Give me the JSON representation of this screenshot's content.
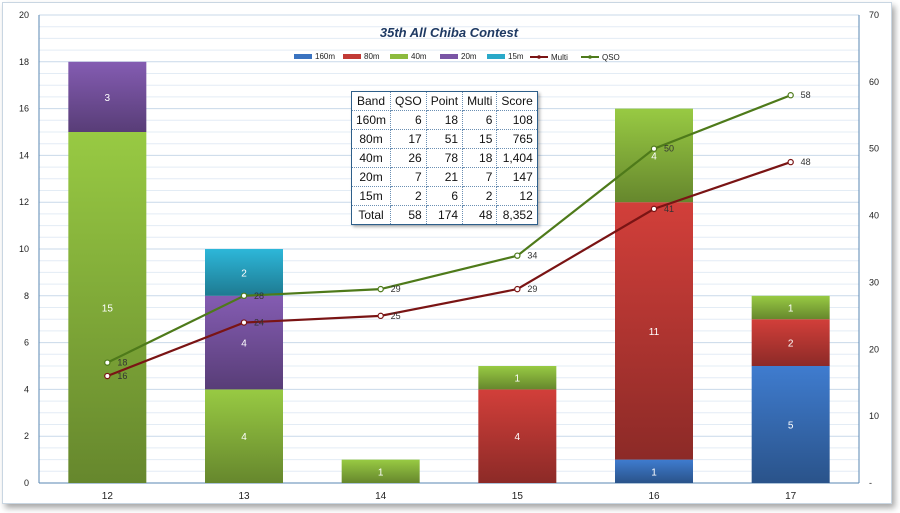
{
  "chart_data": {
    "type": "bar",
    "title": "35th All Chiba Contest",
    "categories": [
      "12",
      "13",
      "14",
      "15",
      "16",
      "17"
    ],
    "stacked": true,
    "series": [
      {
        "name": "160m",
        "color": "#3a73c0",
        "values": [
          0,
          0,
          0,
          0,
          1,
          5
        ]
      },
      {
        "name": "80m",
        "color": "#c23a36",
        "values": [
          0,
          0,
          0,
          4,
          11,
          2
        ]
      },
      {
        "name": "40m",
        "color": "#8dbb3e",
        "values": [
          15,
          4,
          1,
          1,
          4,
          1
        ]
      },
      {
        "name": "20m",
        "color": "#7a55a5",
        "values": [
          3,
          4,
          0,
          0,
          0,
          0
        ]
      },
      {
        "name": "15m",
        "color": "#2aa9c9",
        "values": [
          0,
          2,
          0,
          0,
          0,
          0
        ]
      }
    ],
    "lines": [
      {
        "name": "Multi",
        "color": "#7a1414",
        "axis": "right",
        "values": [
          16,
          24,
          25,
          29,
          41,
          48
        ]
      },
      {
        "name": "QSO",
        "color": "#4e7a1a",
        "axis": "right",
        "values": [
          18,
          28,
          29,
          34,
          50,
          58
        ]
      }
    ],
    "ylim": [
      0,
      20
    ],
    "yticks": [
      0,
      2,
      4,
      6,
      8,
      10,
      12,
      14,
      16,
      18,
      20
    ],
    "y2lim": [
      0,
      70
    ],
    "y2ticks": [
      0,
      10,
      20,
      30,
      40,
      50,
      60,
      70
    ],
    "legend": [
      "160m",
      "80m",
      "40m",
      "20m",
      "15m",
      "Multi",
      "QSO"
    ],
    "legend_position": "top"
  },
  "score_table": {
    "headers": [
      "Band",
      "QSO",
      "Point",
      "Multi",
      "Score"
    ],
    "rows": [
      [
        "160m",
        "6",
        "18",
        "6",
        "108"
      ],
      [
        "80m",
        "17",
        "51",
        "15",
        "765"
      ],
      [
        "40m",
        "26",
        "78",
        "18",
        "1,404"
      ],
      [
        "20m",
        "7",
        "21",
        "7",
        "147"
      ],
      [
        "15m",
        "2",
        "6",
        "2",
        "12"
      ],
      [
        "Total",
        "58",
        "174",
        "48",
        "8,352"
      ]
    ]
  }
}
